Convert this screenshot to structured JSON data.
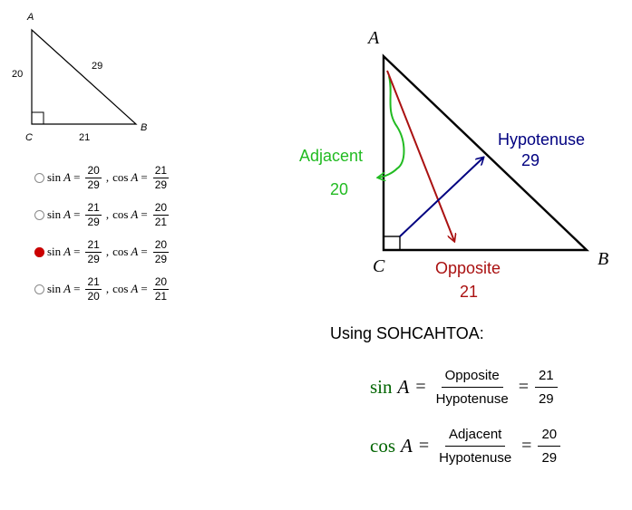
{
  "small_triangle": {
    "vertex_a": "A",
    "vertex_b": "B",
    "vertex_c": "C",
    "side_ac": "20",
    "side_ab": "29",
    "side_cb": "21"
  },
  "options": [
    {
      "sin_label": "sin",
      "cos_label": "cos",
      "var": "A",
      "sin_num": "20",
      "sin_den": "29",
      "cos_num": "21",
      "cos_den": "29",
      "selected": false
    },
    {
      "sin_label": "sin",
      "cos_label": "cos",
      "var": "A",
      "sin_num": "21",
      "sin_den": "29",
      "cos_num": "20",
      "cos_den": "21",
      "selected": false
    },
    {
      "sin_label": "sin",
      "cos_label": "cos",
      "var": "A",
      "sin_num": "21",
      "sin_den": "29",
      "cos_num": "20",
      "cos_den": "29",
      "selected": true
    },
    {
      "sin_label": "sin",
      "cos_label": "cos",
      "var": "A",
      "sin_num": "21",
      "sin_den": "20",
      "cos_num": "20",
      "cos_den": "21",
      "selected": false
    }
  ],
  "big_triangle": {
    "vertex_a": "A",
    "vertex_b": "B",
    "vertex_c": "C",
    "adjacent_label": "Adjacent",
    "adjacent_value": "20",
    "hypotenuse_label": "Hypotenuse",
    "hypotenuse_value": "29",
    "opposite_label": "Opposite",
    "opposite_value": "21"
  },
  "colors": {
    "adjacent": "#22bb22",
    "hypotenuse": "#000080",
    "opposite": "#aa1111",
    "trig_function": "#006400"
  },
  "heading": "Using SOHCAHTOA:",
  "formula_sin": {
    "fn": "sin",
    "var": "A",
    "num": "Opposite",
    "den": "Hypotenuse",
    "result_num": "21",
    "result_den": "29"
  },
  "formula_cos": {
    "fn": "cos",
    "var": "A",
    "num": "Adjacent",
    "den": "Hypotenuse",
    "result_num": "20",
    "result_den": "29"
  }
}
